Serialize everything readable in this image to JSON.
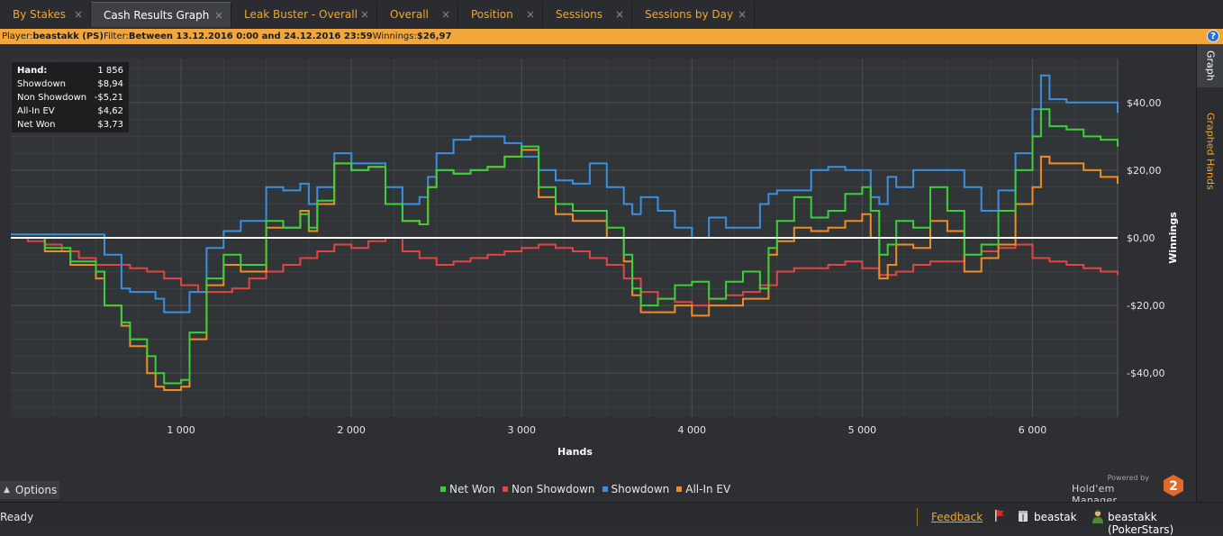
{
  "tabs": [
    {
      "label": "By Stakes",
      "close": "×"
    },
    {
      "label": "Cash Results Graph",
      "close": "×"
    },
    {
      "label": "Leak Buster - Overall",
      "close": "×"
    },
    {
      "label": "Overall",
      "close": "×"
    },
    {
      "label": "Position",
      "close": "×"
    },
    {
      "label": "Sessions",
      "close": "×"
    },
    {
      "label": "Sessions by Day",
      "close": "×"
    }
  ],
  "filter": {
    "player_label": "Player:",
    "player_value": "beastakk (PS)",
    "filter_label": "Filter:",
    "filter_value": "Between 13.12.2016 0:00 and 24.12.2016 23:59",
    "winnings_label": "Winnings:",
    "winnings_value": "$26,97",
    "help": "?"
  },
  "side_tabs": {
    "graph": "Graph",
    "graphed_hands": "Graphed Hands"
  },
  "stats": [
    {
      "k": "Hand:",
      "v": "1 856"
    },
    {
      "k": "Showdown",
      "v": "$8,94"
    },
    {
      "k": "Non Showdown",
      "v": "-$5,21"
    },
    {
      "k": "All-In EV",
      "v": "$4,62"
    },
    {
      "k": "Net Won",
      "v": "$3,73"
    }
  ],
  "options_label": "Options",
  "powered": {
    "line1": "Powered by",
    "line2": "Hold'em Manager",
    "badge": "2"
  },
  "status": {
    "ready": "Ready",
    "feedback": "Feedback",
    "user1": "beastak",
    "user2": "beastakk (PokerStars)"
  },
  "colors": {
    "net_won": "#39d139",
    "non_showdown": "#e04545",
    "showdown": "#3a8fe0",
    "all_in_ev": "#f08c24",
    "accent": "#f5a623"
  },
  "chart_data": {
    "type": "line",
    "xlabel": "Hands",
    "ylabel": "Winnings",
    "xlim": [
      0,
      6500
    ],
    "ylim": [
      -53,
      53
    ],
    "x_ticks": [
      1000,
      2000,
      3000,
      4000,
      5000,
      6000
    ],
    "x_tick_labels": [
      "1 000",
      "2 000",
      "3 000",
      "4 000",
      "5 000",
      "6 000"
    ],
    "y_ticks": [
      40,
      20,
      0,
      -20,
      -40
    ],
    "y_tick_labels": [
      "$40,00",
      "$20,00",
      "$0,00",
      "-$20,00",
      "-$40,00"
    ],
    "grid": true,
    "legend_position": "bottom-center",
    "series": [
      {
        "name": "Net Won",
        "x": [
          0,
          200,
          350,
          500,
          550,
          650,
          700,
          800,
          850,
          900,
          1000,
          1050,
          1150,
          1250,
          1350,
          1500,
          1600,
          1700,
          1750,
          1800,
          1900,
          2000,
          2100,
          2200,
          2300,
          2400,
          2450,
          2500,
          2600,
          2700,
          2800,
          2900,
          3000,
          3100,
          3200,
          3300,
          3400,
          3500,
          3600,
          3650,
          3700,
          3800,
          3900,
          4000,
          4100,
          4200,
          4300,
          4400,
          4450,
          4500,
          4600,
          4700,
          4800,
          4900,
          5000,
          5050,
          5100,
          5150,
          5200,
          5300,
          5400,
          5500,
          5600,
          5700,
          5800,
          5900,
          6000,
          6050,
          6100,
          6200,
          6300,
          6400,
          6500
        ],
        "y": [
          0,
          -3,
          -7,
          -10,
          -20,
          -25,
          -30,
          -35,
          -40,
          -43,
          -42,
          -28,
          -12,
          -5,
          -8,
          5,
          3,
          7,
          3,
          11,
          22,
          20,
          21,
          10,
          5,
          4,
          15,
          20,
          19,
          20,
          21,
          24,
          27,
          15,
          10,
          8,
          8,
          3,
          -5,
          -15,
          -20,
          -18,
          -14,
          -13,
          -18,
          -13,
          -10,
          -15,
          -3,
          5,
          12,
          6,
          8,
          13,
          15,
          8,
          -5,
          -2,
          5,
          3,
          15,
          8,
          -5,
          -2,
          8,
          20,
          30,
          38,
          33,
          32,
          30,
          29,
          27
        ]
      },
      {
        "name": "Non Showdown",
        "x": [
          0,
          100,
          200,
          300,
          400,
          500,
          600,
          700,
          800,
          900,
          1000,
          1100,
          1200,
          1300,
          1400,
          1500,
          1600,
          1700,
          1800,
          1900,
          2000,
          2100,
          2200,
          2300,
          2400,
          2500,
          2600,
          2700,
          2800,
          2900,
          3000,
          3100,
          3200,
          3300,
          3400,
          3500,
          3600,
          3700,
          3800,
          3900,
          4000,
          4100,
          4200,
          4300,
          4400,
          4500,
          4600,
          4700,
          4800,
          4900,
          5000,
          5100,
          5200,
          5300,
          5400,
          5500,
          5600,
          5700,
          5800,
          5900,
          6000,
          6100,
          6200,
          6300,
          6400,
          6500
        ],
        "y": [
          0,
          -1,
          -2,
          -4,
          -6,
          -8,
          -8,
          -9,
          -10,
          -12,
          -14,
          -16,
          -16,
          -15,
          -12,
          -10,
          -8,
          -6,
          -4,
          -2,
          -3,
          -1,
          0,
          -4,
          -6,
          -8,
          -7,
          -6,
          -5,
          -4,
          -3,
          -2,
          -3,
          -4,
          -6,
          -8,
          -12,
          -16,
          -18,
          -19,
          -20,
          -18,
          -17,
          -16,
          -14,
          -10,
          -9,
          -9,
          -8,
          -7,
          -9,
          -11,
          -10,
          -8,
          -7,
          -7,
          -5,
          -4,
          -3,
          -2,
          -6,
          -7,
          -8,
          -9,
          -10,
          -11
        ]
      },
      {
        "name": "Showdown",
        "x": [
          0,
          200,
          350,
          500,
          550,
          650,
          700,
          800,
          850,
          900,
          1000,
          1050,
          1150,
          1250,
          1350,
          1500,
          1600,
          1700,
          1750,
          1800,
          1900,
          2000,
          2100,
          2200,
          2300,
          2400,
          2450,
          2500,
          2600,
          2700,
          2800,
          2900,
          3000,
          3100,
          3200,
          3300,
          3400,
          3500,
          3600,
          3650,
          3700,
          3800,
          3900,
          4000,
          4100,
          4200,
          4300,
          4400,
          4450,
          4500,
          4600,
          4700,
          4800,
          4900,
          5000,
          5050,
          5100,
          5150,
          5200,
          5300,
          5400,
          5500,
          5600,
          5700,
          5800,
          5900,
          6000,
          6050,
          6100,
          6200,
          6300,
          6400,
          6500
        ],
        "y": [
          1,
          1,
          1,
          1,
          -5,
          -15,
          -16,
          -16,
          -18,
          -22,
          -22,
          -16,
          -3,
          2,
          5,
          15,
          14,
          16,
          10,
          15,
          25,
          22,
          22,
          15,
          10,
          12,
          18,
          25,
          29,
          30,
          30,
          28,
          24,
          20,
          17,
          16,
          22,
          15,
          10,
          7,
          12,
          8,
          3,
          0,
          6,
          3,
          3,
          10,
          13,
          14,
          14,
          20,
          21,
          20,
          20,
          12,
          10,
          18,
          15,
          20,
          20,
          20,
          15,
          8,
          14,
          25,
          38,
          48,
          41,
          40,
          40,
          40,
          37
        ]
      },
      {
        "name": "All-In EV",
        "x": [
          0,
          200,
          350,
          500,
          550,
          650,
          700,
          800,
          850,
          900,
          1000,
          1050,
          1150,
          1250,
          1350,
          1500,
          1600,
          1700,
          1750,
          1800,
          1900,
          2000,
          2100,
          2200,
          2300,
          2400,
          2450,
          2500,
          2600,
          2700,
          2800,
          2900,
          3000,
          3100,
          3200,
          3300,
          3400,
          3500,
          3600,
          3650,
          3700,
          3800,
          3900,
          4000,
          4100,
          4200,
          4300,
          4400,
          4450,
          4500,
          4600,
          4700,
          4800,
          4900,
          5000,
          5050,
          5100,
          5150,
          5200,
          5300,
          5400,
          5500,
          5600,
          5700,
          5800,
          5900,
          6000,
          6050,
          6100,
          6200,
          6300,
          6400,
          6500
        ],
        "y": [
          0,
          -4,
          -8,
          -12,
          -20,
          -26,
          -32,
          -40,
          -44,
          -45,
          -44,
          -30,
          -14,
          -8,
          -10,
          3,
          3,
          8,
          2,
          10,
          22,
          20,
          21,
          10,
          5,
          4,
          15,
          20,
          19,
          20,
          21,
          24,
          26,
          12,
          7,
          5,
          5,
          0,
          -7,
          -17,
          -22,
          -22,
          -20,
          -23,
          -20,
          -20,
          -18,
          -18,
          -5,
          -1,
          3,
          2,
          3,
          5,
          7,
          0,
          -12,
          -8,
          -2,
          -3,
          5,
          2,
          -10,
          -6,
          -2,
          10,
          15,
          24,
          22,
          22,
          20,
          18,
          16
        ]
      }
    ]
  }
}
